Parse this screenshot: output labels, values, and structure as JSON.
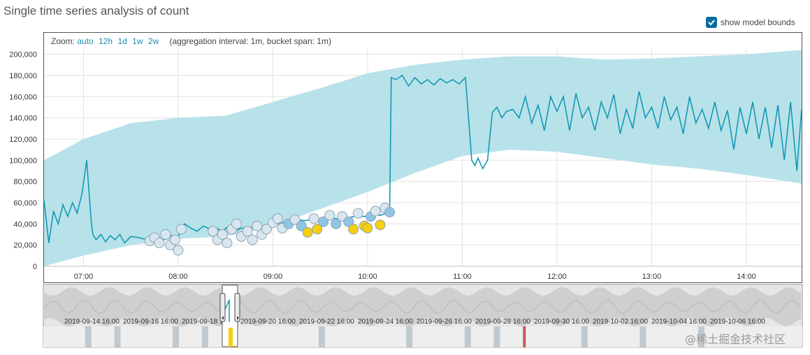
{
  "page": {
    "title": "Single time series analysis of count",
    "show_model_bounds_label": "show model bounds",
    "show_model_bounds_checked": true,
    "zoom_label": "Zoom:",
    "zoom_options": [
      "auto",
      "12h",
      "1d",
      "1w",
      "2w"
    ],
    "aggregation_text": "(aggregation interval: 1m, bucket span: 1m)",
    "watermark": "@稀土掘金技术社区"
  },
  "colors": {
    "line": "#1499b3",
    "bounds": "#b8e2ea",
    "anomaly_low": "#d8e6ef",
    "anomaly_mid": "#8fc6e6",
    "anomaly_high": "#f5cf10",
    "context_bg": "#e6e6e6",
    "context_band": "#cfcfcf",
    "context_line": "#b8b8b8",
    "severity_marker": "#c0c9cf",
    "severity_critical": "#c45a5a"
  },
  "chart_data": {
    "type": "line",
    "title": "Single time series analysis of count",
    "x_range": [
      "06:35",
      "14:35"
    ],
    "ylim": [
      0,
      205000
    ],
    "y_ticks": [
      0,
      20000,
      40000,
      60000,
      80000,
      100000,
      120000,
      140000,
      160000,
      180000,
      200000
    ],
    "y_tick_labels": [
      "0",
      "20,000",
      "40,000",
      "60,000",
      "80,000",
      "100,000",
      "120,000",
      "140,000",
      "160,000",
      "180,000",
      "200,000"
    ],
    "x_ticks": [
      "07:00",
      "08:00",
      "09:00",
      "10:00",
      "11:00",
      "12:00",
      "13:00",
      "14:00"
    ],
    "grid": true,
    "series": [
      {
        "kind": "actual",
        "x": [
          "06:35",
          "06:38",
          "06:41",
          "06:44",
          "06:47",
          "06:50",
          "06:53",
          "06:56",
          "06:59",
          "07:02",
          "07:05",
          "07:06",
          "07:08",
          "07:11",
          "07:14",
          "07:17",
          "07:20",
          "07:23",
          "07:26",
          "07:30",
          "07:35",
          "07:40",
          "07:45",
          "07:50",
          "07:55",
          "08:00",
          "08:04",
          "08:08",
          "08:12",
          "08:16",
          "08:20",
          "08:24",
          "08:28",
          "08:32",
          "08:36",
          "08:40",
          "08:44",
          "08:48",
          "08:52",
          "08:56",
          "09:00",
          "09:04",
          "09:08",
          "09:12",
          "09:16",
          "09:20",
          "09:24",
          "09:28",
          "09:32",
          "09:36",
          "09:40",
          "09:44",
          "09:48",
          "09:52",
          "09:56",
          "10:00",
          "10:04",
          "10:08",
          "10:12",
          "10:14",
          "10:15",
          "10:18",
          "10:22",
          "10:26",
          "10:30",
          "10:34",
          "10:38",
          "10:42",
          "10:46",
          "10:50",
          "10:54",
          "10:58",
          "11:02",
          "11:06",
          "11:08",
          "11:10",
          "11:13",
          "11:16",
          "11:19",
          "11:22",
          "11:25",
          "11:28",
          "11:32",
          "11:36",
          "11:40",
          "11:44",
          "11:48",
          "11:52",
          "11:56",
          "12:00",
          "12:04",
          "12:08",
          "12:12",
          "12:16",
          "12:20",
          "12:24",
          "12:28",
          "12:32",
          "12:36",
          "12:40",
          "12:44",
          "12:48",
          "12:52",
          "12:56",
          "13:00",
          "13:04",
          "13:08",
          "13:12",
          "13:16",
          "13:20",
          "13:24",
          "13:28",
          "13:32",
          "13:36",
          "13:40",
          "13:44",
          "13:48",
          "13:52",
          "13:56",
          "14:00",
          "14:04",
          "14:08",
          "14:12",
          "14:16",
          "14:20",
          "14:24",
          "14:28",
          "14:32",
          "14:35"
        ],
        "y": [
          62000,
          22000,
          52000,
          40000,
          58000,
          47000,
          60000,
          50000,
          68000,
          100000,
          40000,
          30000,
          25000,
          30000,
          23000,
          29000,
          25000,
          30000,
          22000,
          28000,
          27000,
          25000,
          24000,
          24000,
          29000,
          28000,
          40000,
          36000,
          33000,
          38000,
          35000,
          36000,
          33000,
          38000,
          33000,
          36000,
          36000,
          37000,
          35000,
          38000,
          41000,
          40000,
          42000,
          41000,
          44000,
          43000,
          44000,
          44000,
          45000,
          46000,
          45000,
          45000,
          46000,
          47000,
          47000,
          47000,
          49000,
          48000,
          50000,
          52000,
          178000,
          176000,
          180000,
          170000,
          178000,
          172000,
          176000,
          171000,
          177000,
          173000,
          176000,
          172000,
          178000,
          100000,
          95000,
          102000,
          92000,
          100000,
          145000,
          150000,
          140000,
          146000,
          148000,
          140000,
          160000,
          135000,
          152000,
          128000,
          160000,
          146000,
          160000,
          128000,
          163000,
          140000,
          150000,
          128000,
          155000,
          140000,
          162000,
          125000,
          148000,
          130000,
          165000,
          140000,
          150000,
          130000,
          160000,
          138000,
          150000,
          125000,
          160000,
          135000,
          148000,
          130000,
          155000,
          128000,
          147000,
          110000,
          150000,
          125000,
          155000,
          120000,
          150000,
          112000,
          152000,
          100000,
          155000,
          90000,
          148000
        ]
      },
      {
        "kind": "model_upper",
        "x": [
          "06:35",
          "07:00",
          "07:30",
          "08:00",
          "08:30",
          "09:00",
          "09:30",
          "10:00",
          "10:30",
          "11:00",
          "11:30",
          "12:00",
          "12:30",
          "13:00",
          "13:30",
          "14:00",
          "14:35"
        ],
        "y": [
          100000,
          120000,
          135000,
          140000,
          142000,
          155000,
          168000,
          182000,
          190000,
          195000,
          198000,
          198000,
          195000,
          196000,
          198000,
          200000,
          204000
        ]
      },
      {
        "kind": "model_lower",
        "x": [
          "06:35",
          "07:00",
          "07:30",
          "08:00",
          "08:30",
          "09:00",
          "09:30",
          "10:00",
          "10:30",
          "11:00",
          "11:30",
          "12:00",
          "12:30",
          "13:00",
          "13:30",
          "14:00",
          "14:35"
        ],
        "y": [
          0,
          10000,
          20000,
          26000,
          28000,
          38000,
          54000,
          70000,
          88000,
          104000,
          110000,
          108000,
          102000,
          96000,
          92000,
          86000,
          78000
        ]
      }
    ],
    "anomalies": [
      {
        "x": "07:42",
        "y": 24000,
        "severity": "low"
      },
      {
        "x": "07:45",
        "y": 27000,
        "severity": "low"
      },
      {
        "x": "07:48",
        "y": 22000,
        "severity": "low"
      },
      {
        "x": "07:52",
        "y": 30000,
        "severity": "low"
      },
      {
        "x": "07:55",
        "y": 20000,
        "severity": "low"
      },
      {
        "x": "07:58",
        "y": 25000,
        "severity": "low"
      },
      {
        "x": "08:00",
        "y": 15000,
        "severity": "low"
      },
      {
        "x": "08:02",
        "y": 35000,
        "severity": "low"
      },
      {
        "x": "08:22",
        "y": 33000,
        "severity": "low"
      },
      {
        "x": "08:25",
        "y": 25000,
        "severity": "low"
      },
      {
        "x": "08:28",
        "y": 30000,
        "severity": "low"
      },
      {
        "x": "08:31",
        "y": 22000,
        "severity": "low"
      },
      {
        "x": "08:34",
        "y": 35000,
        "severity": "low"
      },
      {
        "x": "08:37",
        "y": 40000,
        "severity": "low"
      },
      {
        "x": "08:40",
        "y": 28000,
        "severity": "low"
      },
      {
        "x": "08:44",
        "y": 33000,
        "severity": "low"
      },
      {
        "x": "08:47",
        "y": 25000,
        "severity": "low"
      },
      {
        "x": "08:50",
        "y": 38000,
        "severity": "low"
      },
      {
        "x": "08:53",
        "y": 30000,
        "severity": "low"
      },
      {
        "x": "08:56",
        "y": 35000,
        "severity": "low"
      },
      {
        "x": "09:00",
        "y": 41000,
        "severity": "low"
      },
      {
        "x": "09:03",
        "y": 45000,
        "severity": "low"
      },
      {
        "x": "09:06",
        "y": 36000,
        "severity": "low"
      },
      {
        "x": "09:10",
        "y": 40000,
        "severity": "mid"
      },
      {
        "x": "09:14",
        "y": 44000,
        "severity": "low"
      },
      {
        "x": "09:18",
        "y": 38000,
        "severity": "mid"
      },
      {
        "x": "09:22",
        "y": 32000,
        "severity": "high"
      },
      {
        "x": "09:26",
        "y": 45000,
        "severity": "low"
      },
      {
        "x": "09:28",
        "y": 35000,
        "severity": "high"
      },
      {
        "x": "09:32",
        "y": 42000,
        "severity": "mid"
      },
      {
        "x": "09:36",
        "y": 48000,
        "severity": "low"
      },
      {
        "x": "09:40",
        "y": 40000,
        "severity": "mid"
      },
      {
        "x": "09:44",
        "y": 47000,
        "severity": "low"
      },
      {
        "x": "09:48",
        "y": 42000,
        "severity": "mid"
      },
      {
        "x": "09:51",
        "y": 35000,
        "severity": "high"
      },
      {
        "x": "09:54",
        "y": 50000,
        "severity": "low"
      },
      {
        "x": "09:58",
        "y": 38000,
        "severity": "high"
      },
      {
        "x": "10:00",
        "y": 36000,
        "severity": "high"
      },
      {
        "x": "10:02",
        "y": 47000,
        "severity": "mid"
      },
      {
        "x": "10:05",
        "y": 52000,
        "severity": "low"
      },
      {
        "x": "10:08",
        "y": 39000,
        "severity": "high"
      },
      {
        "x": "10:11",
        "y": 55000,
        "severity": "low"
      },
      {
        "x": "10:14",
        "y": 51000,
        "severity": "mid"
      }
    ],
    "context": {
      "date_labels": [
        "2019-09-14 16:00",
        "2019-09-16 16:00",
        "2019-09-18 16:00",
        "2019-09-20 16:00",
        "2019-09-22 16:00",
        "2019-09-24 16:00",
        "2019-09-26 16:00",
        "2019-09-28 16:00",
        "2019-09-30 16:00",
        "2019-10-02 16:00",
        "2019-10-04 16:00",
        "2019-10-06 16:00"
      ],
      "brush_range": [
        "2019-09-19 06:35",
        "2019-09-19 14:35"
      ],
      "severity_markers": [
        {
          "date": "2019-09-14",
          "severity": "low"
        },
        {
          "date": "2019-09-15",
          "severity": "low"
        },
        {
          "date": "2019-09-17",
          "severity": "low"
        },
        {
          "date": "2019-09-18",
          "severity": "low"
        },
        {
          "date": "2019-09-19",
          "severity": "high"
        },
        {
          "date": "2019-09-22",
          "severity": "low"
        },
        {
          "date": "2019-09-25",
          "severity": "low"
        },
        {
          "date": "2019-09-27",
          "severity": "low"
        },
        {
          "date": "2019-09-28",
          "severity": "low"
        },
        {
          "date": "2019-09-29",
          "severity": "critical"
        },
        {
          "date": "2019-10-01",
          "severity": "low"
        },
        {
          "date": "2019-10-03",
          "severity": "low"
        },
        {
          "date": "2019-10-05",
          "severity": "low"
        }
      ]
    }
  }
}
